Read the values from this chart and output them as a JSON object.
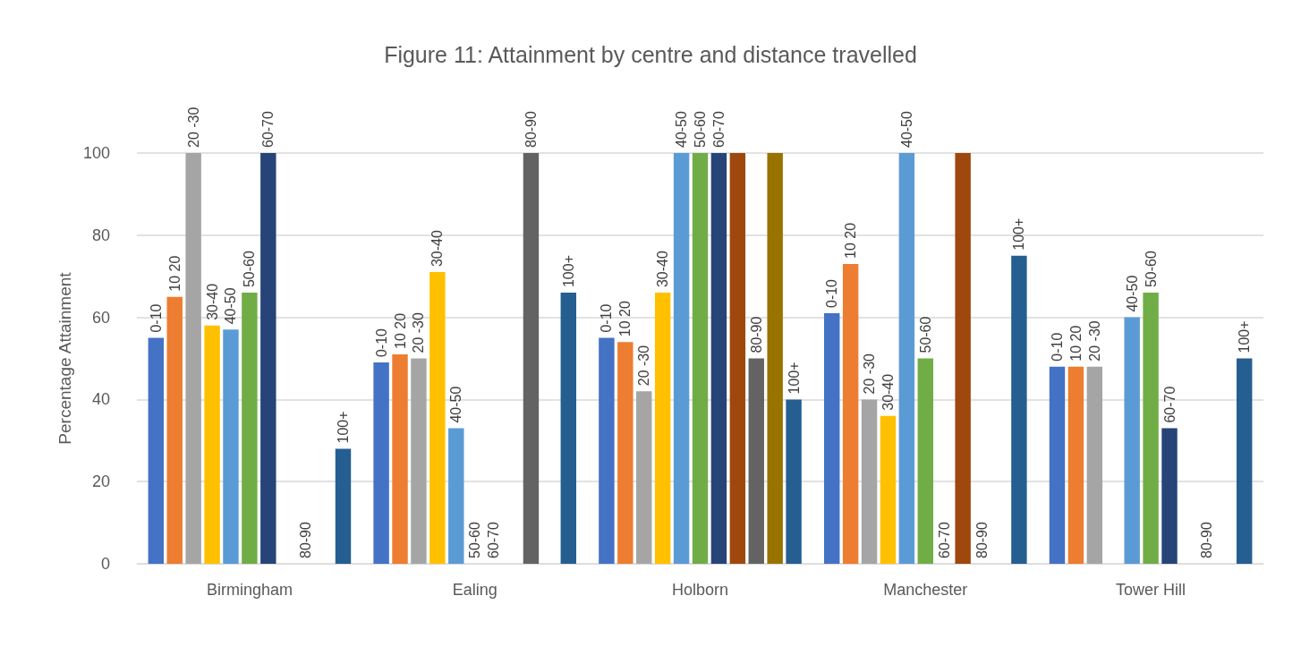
{
  "chart_data": {
    "type": "bar",
    "title": "Figure 11: Attainment by centre and distance travelled",
    "ylabel": "Percentage Attainment",
    "categories": [
      "Birmingham",
      "Ealing",
      "Holborn",
      "Manchester",
      "Tower Hill"
    ],
    "series": [
      {
        "name": "0-10",
        "color": "#4472c4",
        "values": [
          55,
          49,
          55,
          61,
          48
        ]
      },
      {
        "name": "10 20",
        "color": "#ed7d31",
        "values": [
          65,
          51,
          54,
          73,
          48
        ]
      },
      {
        "name": "20 -30",
        "color": "#a5a5a5",
        "values": [
          100,
          50,
          42,
          40,
          48
        ]
      },
      {
        "name": "30-40",
        "color": "#ffc000",
        "values": [
          58,
          71,
          66,
          36,
          null
        ]
      },
      {
        "name": "40-50",
        "color": "#5b9bd5",
        "values": [
          57,
          33,
          100,
          100,
          60
        ]
      },
      {
        "name": "50-60",
        "color": "#70ad47",
        "values": [
          66,
          0,
          100,
          50,
          66
        ]
      },
      {
        "name": "60-70",
        "color": "#264478",
        "values": [
          100,
          0,
          100,
          0,
          33
        ]
      },
      {
        "color": "#9e480e",
        "values": [
          null,
          null,
          100,
          100,
          null
        ]
      },
      {
        "name": "80-90",
        "color": "#636363",
        "values": [
          0,
          100,
          50,
          0,
          0
        ]
      },
      {
        "color": "#997300",
        "values": [
          null,
          null,
          100,
          null,
          null
        ]
      },
      {
        "name": "100+",
        "color": "#255e91",
        "values": [
          28,
          66,
          40,
          75,
          50
        ]
      }
    ],
    "ylim": [
      0,
      100
    ],
    "yticks": [
      0,
      20,
      40,
      60,
      80,
      100
    ],
    "grid": "y",
    "legend": false
  }
}
